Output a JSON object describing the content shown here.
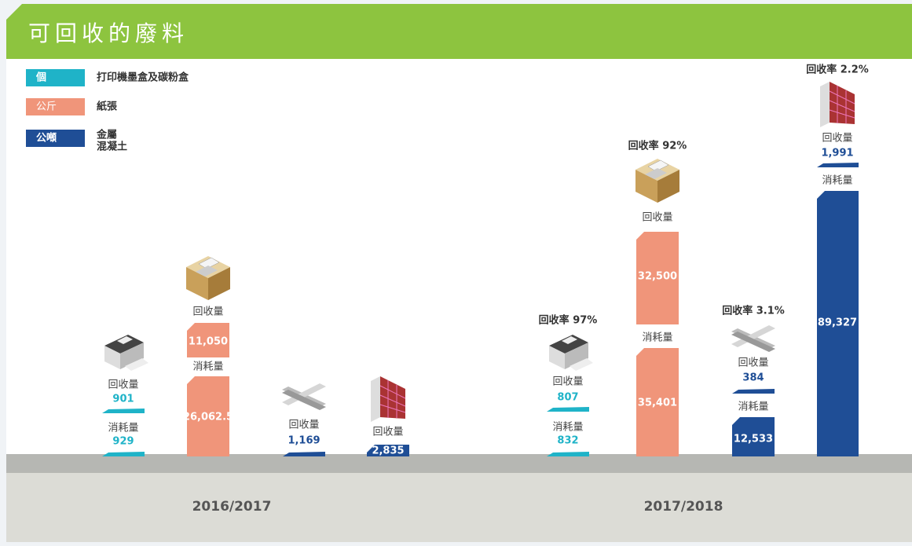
{
  "title": "可回收的廢料",
  "legend": [
    {
      "unit": "個",
      "label": [
        "打印機墨盒及碳粉盒"
      ]
    },
    {
      "unit": "公斤",
      "label": [
        "紙張"
      ]
    },
    {
      "unit": "公噸",
      "label": [
        "金屬",
        "混凝土"
      ]
    }
  ],
  "periods": [
    {
      "label": "2016/2017",
      "items": [
        {
          "recycled_label": "回收量",
          "recycled": "901",
          "consumed_label": "消耗量",
          "consumed": "929"
        },
        {
          "recycled_label": "回收量",
          "recycled": "11,050",
          "consumed_label": "消耗量",
          "consumed": "26,062.5"
        },
        {
          "recycled_label": "回收量",
          "recycled": "1,169"
        },
        {
          "recycled_label": "回收量",
          "recycled": "2,835"
        }
      ]
    },
    {
      "label": "2017/2018",
      "items": [
        {
          "rate": "回收率 97%",
          "recycled_label": "回收量",
          "recycled": "807",
          "consumed_label": "消耗量",
          "consumed": "832"
        },
        {
          "rate": "回收率 92%",
          "recycled_label": "回收量",
          "recycled": "32,500",
          "consumed_label": "消耗量",
          "consumed": "35,401"
        },
        {
          "rate": "回收率 3.1%",
          "recycled_label": "回收量",
          "recycled": "384",
          "consumed_label": "消耗量",
          "consumed": "12,533"
        },
        {
          "rate": "回收率 2.2%",
          "recycled_label": "回收量",
          "recycled": "1,991",
          "consumed_label": "消耗量",
          "consumed": "89,327"
        }
      ]
    }
  ]
}
